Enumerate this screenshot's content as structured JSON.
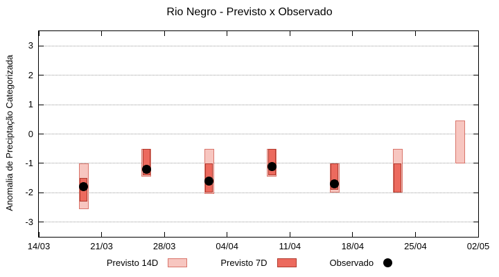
{
  "chart_data": {
    "type": "bar",
    "subtype": "floating-range-bars-with-observed-points",
    "title": "Rio Negro - Previsto x Observado",
    "xlabel": "",
    "ylabel": "Anomalia de Preciptação Categorizada",
    "ylim": [
      -3.5,
      3.5
    ],
    "y_ticks": [
      -3,
      -2,
      -1,
      0,
      1,
      2,
      3
    ],
    "x_ticks": [
      "14/03",
      "21/03",
      "28/03",
      "04/04",
      "11/04",
      "18/04",
      "25/04",
      "02/05"
    ],
    "grid": "horizontal-dotted",
    "legend_position": "bottom",
    "colors": {
      "previsto_14d_fill": "#f7c6c0",
      "previsto_14d_border": "#d9756b",
      "previsto_7d_fill": "#ec6a5e",
      "previsto_7d_border": "#b03a2e",
      "observado": "#000000"
    },
    "legend": [
      {
        "label": "Previsto 14D"
      },
      {
        "label": "Previsto 7D"
      },
      {
        "label": "Observado"
      }
    ],
    "points": [
      {
        "date": "19/03",
        "previsto_14d": [
          -2.55,
          -1.0
        ],
        "previsto_7d": [
          -2.3,
          -1.5
        ],
        "observado": -1.8
      },
      {
        "date": "26/03",
        "previsto_14d": [
          -1.45,
          -0.5
        ],
        "previsto_7d": [
          -1.4,
          -0.5
        ],
        "observado": -1.2
      },
      {
        "date": "02/04",
        "previsto_14d": [
          -2.05,
          -0.5
        ],
        "previsto_7d": [
          -2.0,
          -1.0
        ],
        "observado": -1.6
      },
      {
        "date": "09/04",
        "previsto_14d": [
          -1.45,
          -0.5
        ],
        "previsto_7d": [
          -1.4,
          -0.5
        ],
        "observado": -1.1
      },
      {
        "date": "16/04",
        "previsto_14d": [
          -2.0,
          -1.0
        ],
        "previsto_7d": [
          -1.9,
          -1.0
        ],
        "observado": -1.7
      },
      {
        "date": "23/04",
        "previsto_14d": [
          -2.0,
          -0.5
        ],
        "previsto_7d": [
          -2.0,
          -1.0
        ],
        "observado": null
      },
      {
        "date": "30/04",
        "previsto_14d": [
          -1.0,
          0.45
        ],
        "previsto_7d": null,
        "observado": null
      }
    ]
  }
}
